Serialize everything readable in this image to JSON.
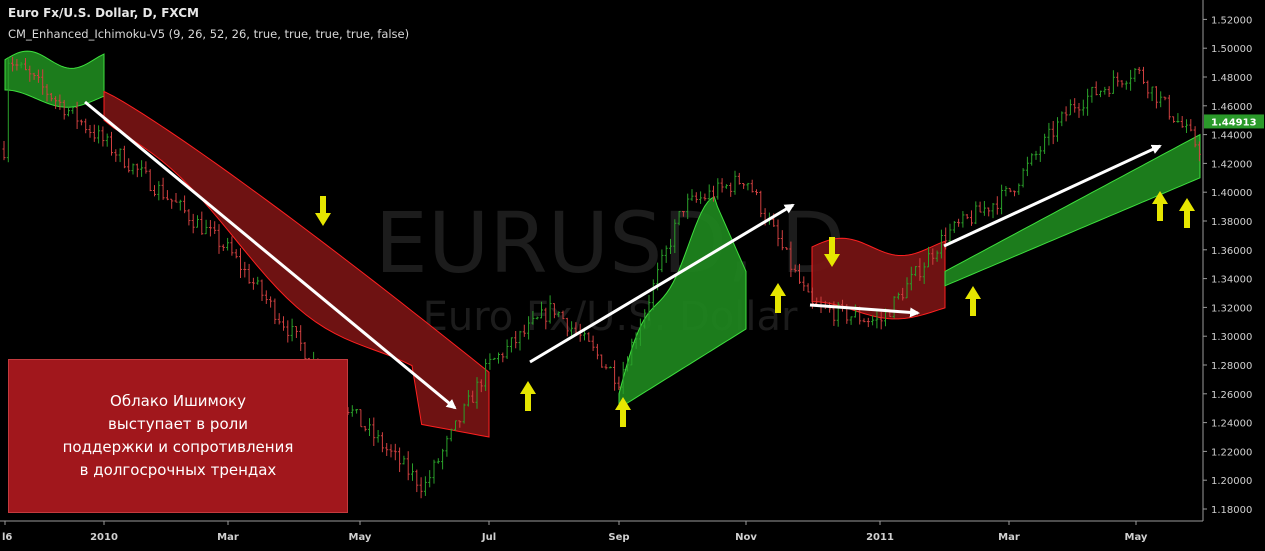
{
  "header": {
    "title": "Euro Fx/U.S. Dollar, D, FXCM",
    "indicator": "CM_Enhanced_Ichimoku-V5 (9, 26, 52, 26, true, true, true, true, false)"
  },
  "watermark": {
    "symbol": "EURUSD, D",
    "name": "Euro Fx/U.S. Dollar"
  },
  "callout": {
    "lines": [
      "Облако Ишимоку",
      "выступает в роли",
      "поддержки и сопротивления",
      "в долгосрочных трендах"
    ]
  },
  "colors": {
    "background": "#000000",
    "bull_candle": "#2aa02a",
    "bear_candle": "#d04040",
    "cloud_bull": "#1f8a1f",
    "cloud_bull_edge": "#3ee03e",
    "cloud_bear": "#7a1414",
    "cloud_bear_edge": "#ff2020",
    "arrow_marker": "#e6e600",
    "trend_arrow": "#ffffff",
    "price_badge": "#2a9a2a",
    "callout_bg": "#a1171c"
  },
  "chart_data": {
    "type": "candlestick",
    "title": "Euro Fx/U.S. Dollar, D, FXCM",
    "x_ticks": [
      "l6",
      "2010",
      "Mar",
      "May",
      "Jul",
      "Sep",
      "Nov",
      "2011",
      "Mar",
      "May"
    ],
    "y_ticks": [
      "1.52000",
      "1.50000",
      "1.48000",
      "1.46000",
      "1.44000",
      "1.42000",
      "1.40000",
      "1.38000",
      "1.36000",
      "1.34000",
      "1.32000",
      "1.30000",
      "1.28000",
      "1.26000",
      "1.24000",
      "1.22000",
      "1.20000",
      "1.18000"
    ],
    "y_range": [
      1.17,
      1.525
    ],
    "last_price": "1.44913",
    "price_path": [
      [
        "l6",
        1.495
      ],
      [
        "2010",
        1.435
      ],
      [
        "Mar",
        1.36
      ],
      [
        "May",
        1.24
      ],
      [
        "Jun",
        1.195
      ],
      [
        "Jul",
        1.28
      ],
      [
        "Aug",
        1.32
      ],
      [
        "Sep",
        1.27
      ],
      [
        "Oct",
        1.39
      ],
      [
        "Nov",
        1.41
      ],
      [
        "Dec",
        1.32
      ],
      [
        "2011",
        1.31
      ],
      [
        "Feb",
        1.37
      ],
      [
        "Mar",
        1.4
      ],
      [
        "Apr",
        1.46
      ],
      [
        "May",
        1.485
      ],
      [
        "May-end",
        1.43
      ]
    ],
    "cloud_segments": [
      {
        "trend": "bullish",
        "from": "l6",
        "to": "2010",
        "upper": 1.492,
        "lower": 1.465
      },
      {
        "trend": "bearish",
        "from": "2010",
        "to": "Jul",
        "upper": 1.47,
        "lower": 1.23
      },
      {
        "trend": "bullish",
        "from": "Sep",
        "to": "Nov",
        "upper": 1.395,
        "lower": 1.25
      },
      {
        "trend": "bearish",
        "from": "Dec",
        "to": "Feb",
        "upper": 1.362,
        "lower": 1.318
      },
      {
        "trend": "bullish",
        "from": "Feb",
        "to": "May-end",
        "upper": 1.44,
        "lower": 1.335
      }
    ],
    "grid": false,
    "annotations": [
      "trend arrows: down from 2010 to Jun, up from Jul to Oct, flat in Dec, up from Feb to May",
      "yellow arrows: down at cloud resistance, up at cloud support"
    ]
  }
}
